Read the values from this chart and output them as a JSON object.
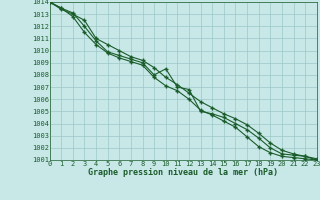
{
  "x": [
    0,
    1,
    2,
    3,
    4,
    5,
    6,
    7,
    8,
    9,
    10,
    11,
    12,
    13,
    14,
    15,
    16,
    17,
    18,
    19,
    20,
    21,
    22,
    23
  ],
  "line1": [
    1014.0,
    1013.4,
    1013.0,
    1012.5,
    1011.0,
    1010.5,
    1010.0,
    1009.5,
    1009.2,
    1008.6,
    1007.8,
    1007.2,
    1006.5,
    1005.8,
    1005.3,
    1004.8,
    1004.4,
    1003.9,
    1003.2,
    1002.4,
    1001.8,
    1001.5,
    1001.3,
    1001.1
  ],
  "line2": [
    1014.0,
    1013.5,
    1013.1,
    1012.0,
    1010.8,
    1009.9,
    1009.6,
    1009.3,
    1009.0,
    1008.0,
    1008.5,
    1007.0,
    1006.8,
    1005.0,
    1004.8,
    1004.5,
    1004.0,
    1003.5,
    1002.8,
    1002.0,
    1001.5,
    1001.4,
    1001.3,
    1001.0
  ],
  "line3": [
    1014.0,
    1013.5,
    1012.8,
    1011.5,
    1010.5,
    1009.8,
    1009.4,
    1009.1,
    1008.8,
    1007.8,
    1007.1,
    1006.7,
    1006.0,
    1005.1,
    1004.7,
    1004.2,
    1003.7,
    1002.9,
    1002.1,
    1001.6,
    1001.3,
    1001.2,
    1001.1,
    1001.0
  ],
  "ylim": [
    1001,
    1014
  ],
  "xlim": [
    0,
    23
  ],
  "yticks": [
    1001,
    1002,
    1003,
    1004,
    1005,
    1006,
    1007,
    1008,
    1009,
    1010,
    1011,
    1012,
    1013,
    1014
  ],
  "xticks": [
    0,
    1,
    2,
    3,
    4,
    5,
    6,
    7,
    8,
    9,
    10,
    11,
    12,
    13,
    14,
    15,
    16,
    17,
    18,
    19,
    20,
    21,
    22,
    23
  ],
  "xlabel": "Graphe pression niveau de la mer (hPa)",
  "line_color": "#1a5c2a",
  "bg_color": "#c8e8e8",
  "grid_color": "#9dc8c8",
  "marker": "+",
  "markersize": 3.5,
  "markeredgewidth": 1.0,
  "linewidth": 0.8,
  "tick_fontsize": 5.0,
  "xlabel_fontsize": 6.0
}
